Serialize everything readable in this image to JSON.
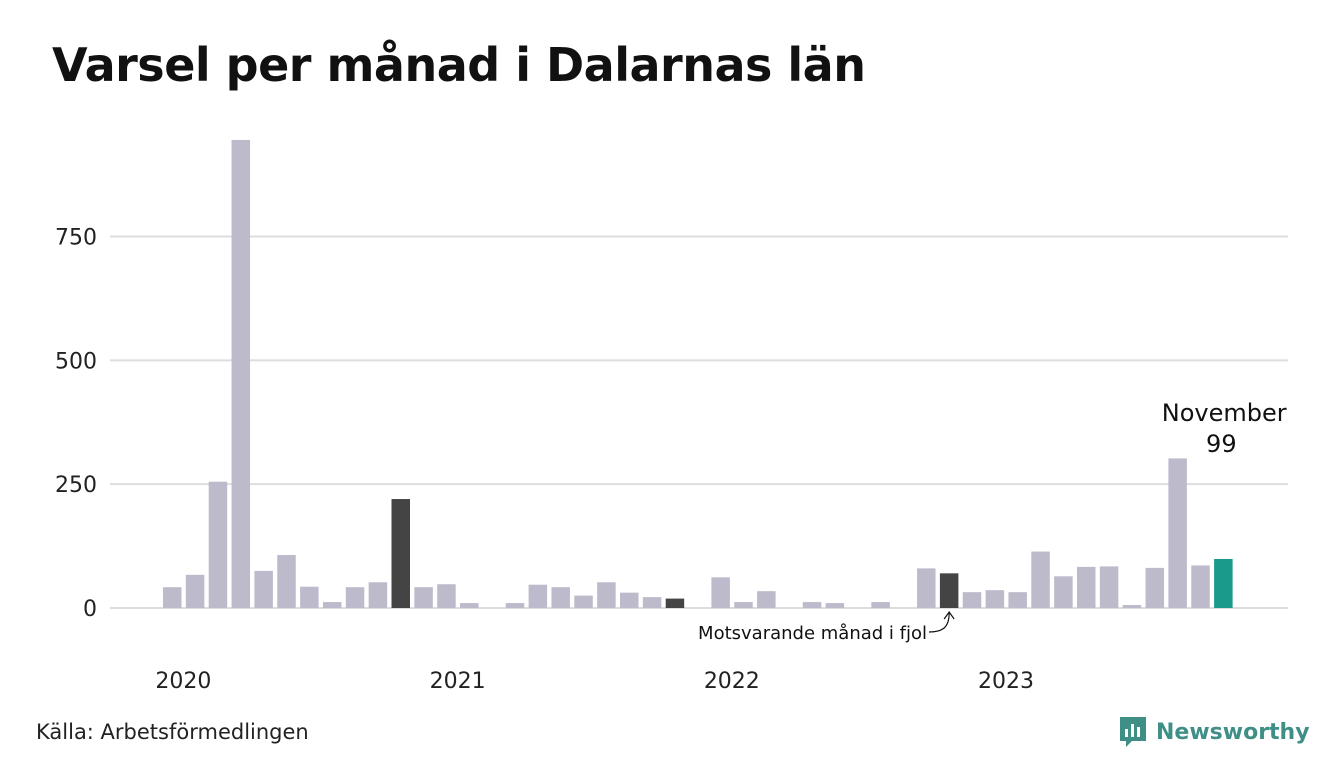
{
  "title": "Varsel per månad i Dalarnas län",
  "source": "Källa: Arbetsförmedlingen",
  "brand": {
    "name": "Newsworthy",
    "icon": "newsworthy-logo-icon",
    "color": "#3f8f87"
  },
  "annotations": {
    "highlight_month": "November",
    "highlight_value": "99",
    "comparison_label": "Motsvarande månad i fjol"
  },
  "colors": {
    "default_bar": "#bdbbcb",
    "comparison_bar": "#444444",
    "highlight_bar": "#1a9a8a",
    "grid": "#dddddd"
  },
  "chart_data": {
    "type": "bar",
    "title": "Varsel per månad i Dalarnas län",
    "xlabel": "",
    "ylabel": "",
    "ylim": [
      0,
      950
    ],
    "yticks": [
      0,
      250,
      500,
      750
    ],
    "year_labels": [
      "2020",
      "2021",
      "2022",
      "2023"
    ],
    "grid": true,
    "x": [
      "2020-01",
      "2020-02",
      "2020-03",
      "2020-04",
      "2020-05",
      "2020-06",
      "2020-07",
      "2020-08",
      "2020-09",
      "2020-10",
      "2020-11",
      "2020-12",
      "2021-01",
      "2021-02",
      "2021-03",
      "2021-04",
      "2021-05",
      "2021-06",
      "2021-07",
      "2021-08",
      "2021-09",
      "2021-10",
      "2021-11",
      "2021-12",
      "2022-01",
      "2022-02",
      "2022-03",
      "2022-04",
      "2022-05",
      "2022-06",
      "2022-07",
      "2022-08",
      "2022-09",
      "2022-10",
      "2022-11",
      "2022-12",
      "2023-01",
      "2023-02",
      "2023-03",
      "2023-04",
      "2023-05",
      "2023-06",
      "2023-07",
      "2023-08",
      "2023-09",
      "2023-10",
      "2023-11"
    ],
    "values": [
      42,
      67,
      255,
      945,
      75,
      107,
      43,
      12,
      42,
      52,
      220,
      42,
      48,
      10,
      0,
      10,
      47,
      42,
      25,
      52,
      31,
      22,
      19,
      0,
      62,
      12,
      34,
      0,
      12,
      10,
      0,
      12,
      0,
      80,
      70,
      32,
      36,
      32,
      114,
      64,
      83,
      84,
      6,
      81,
      302,
      86,
      99
    ],
    "highlight_index": 46,
    "comparison_indices": [
      10,
      22,
      34
    ]
  }
}
